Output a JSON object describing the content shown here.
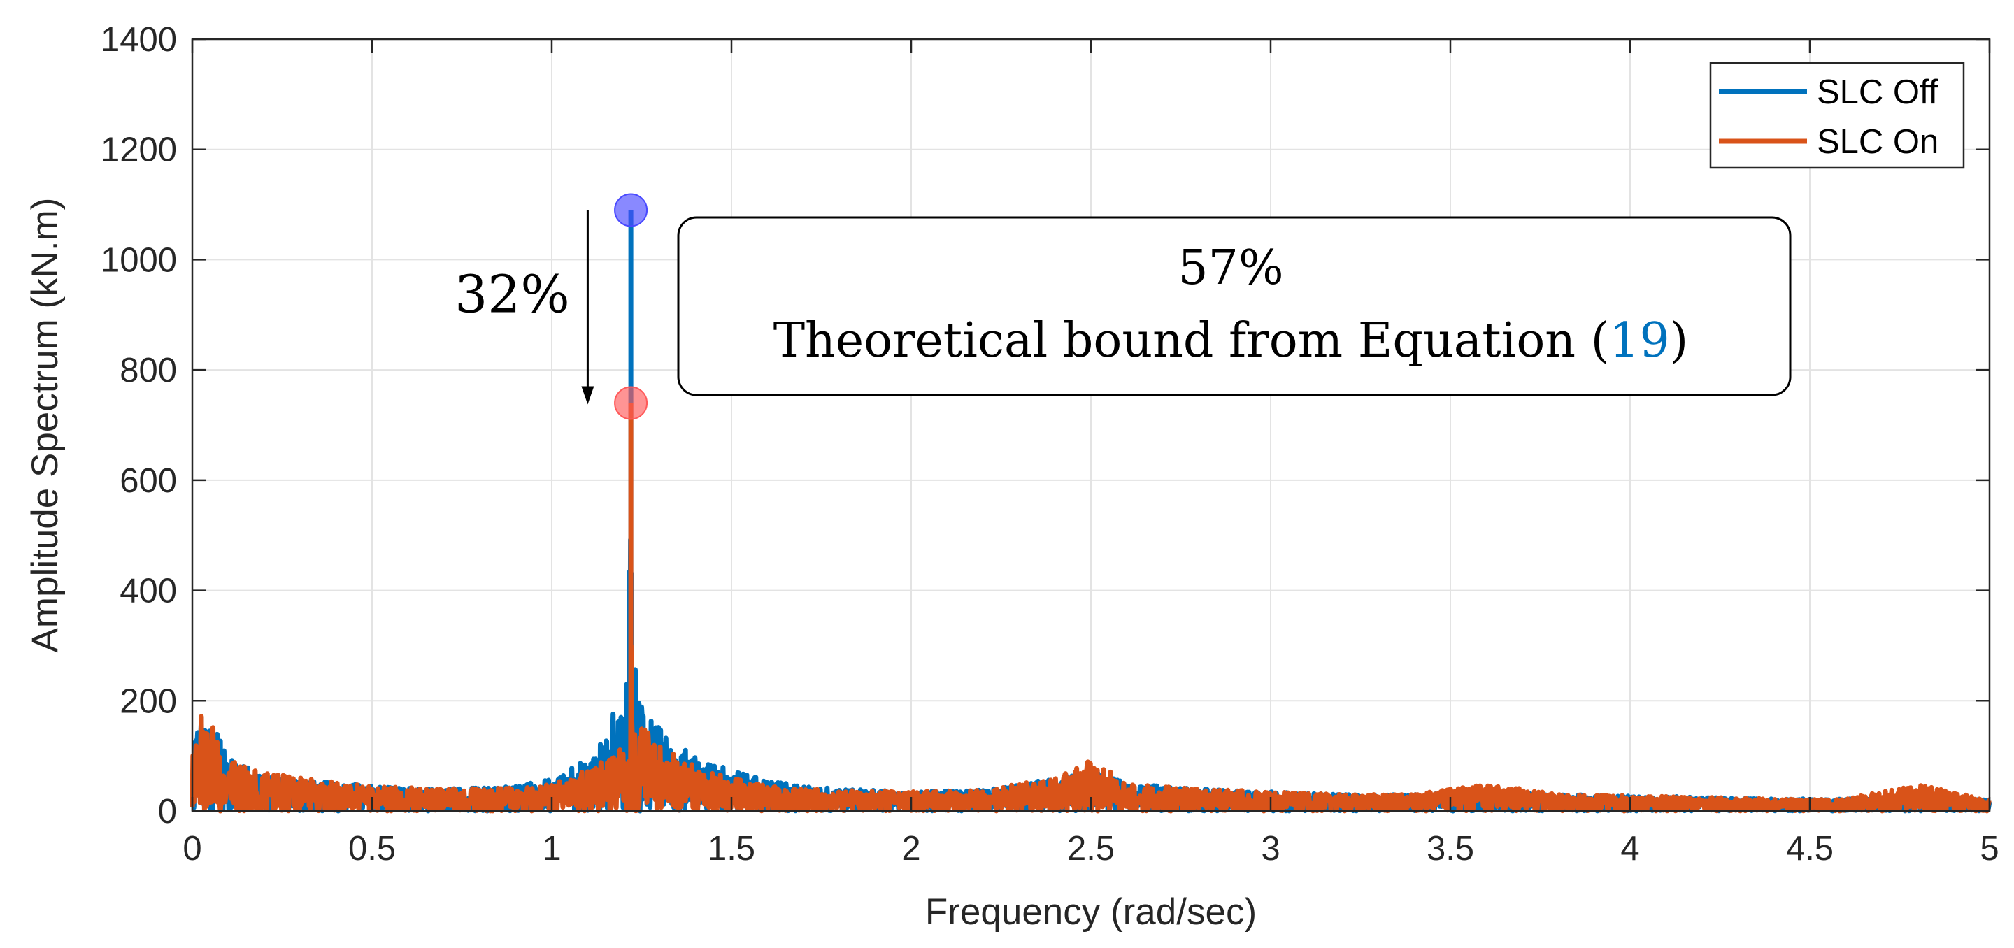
{
  "chart_data": {
    "type": "line",
    "xlabel": "Frequency (rad/sec)",
    "ylabel": "Amplitude Spectrum (kN.m)",
    "xlim": [
      0,
      5
    ],
    "ylim": [
      0,
      1400
    ],
    "x_ticks": [
      0,
      0.5,
      1,
      1.5,
      2,
      2.5,
      3,
      3.5,
      4,
      4.5,
      5
    ],
    "x_tick_labels": [
      "0",
      "0.5",
      "1",
      "1.5",
      "2",
      "2.5",
      "3",
      "3.5",
      "4",
      "4.5",
      "5"
    ],
    "y_ticks": [
      0,
      200,
      400,
      600,
      800,
      1000,
      1200,
      1400
    ],
    "y_tick_labels": [
      "0",
      "200",
      "400",
      "600",
      "800",
      "1000",
      "1200",
      "1400"
    ],
    "grid": true,
    "legend_position": "top-right",
    "series": [
      {
        "name": "SLC Off",
        "color": "#0072BD",
        "x": [
          0,
          0.03,
          0.1,
          0.2,
          0.3,
          0.5,
          0.7,
          0.9,
          1.0,
          1.1,
          1.15,
          1.18,
          1.2,
          1.215,
          1.22,
          1.225,
          1.24,
          1.26,
          1.3,
          1.35,
          1.4,
          1.5,
          1.6,
          1.7,
          1.8,
          2.0,
          2.2,
          2.4,
          2.5,
          2.6,
          2.8,
          3.0,
          3.2,
          3.4,
          3.6,
          3.8,
          4.0,
          4.2,
          4.4,
          4.6,
          4.8,
          5.0
        ],
        "values": [
          110,
          190,
          100,
          70,
          60,
          45,
          40,
          45,
          60,
          95,
          135,
          195,
          175,
          300,
          1090,
          300,
          230,
          180,
          150,
          120,
          100,
          75,
          55,
          45,
          40,
          35,
          38,
          60,
          75,
          50,
          40,
          35,
          30,
          30,
          35,
          30,
          28,
          25,
          22,
          22,
          25,
          20
        ]
      },
      {
        "name": "SLC On",
        "color": "#D95319",
        "x": [
          0,
          0.03,
          0.1,
          0.2,
          0.3,
          0.5,
          0.7,
          0.9,
          1.0,
          1.1,
          1.15,
          1.18,
          1.2,
          1.215,
          1.22,
          1.225,
          1.24,
          1.26,
          1.3,
          1.35,
          1.4,
          1.5,
          1.6,
          1.7,
          1.8,
          2.0,
          2.2,
          2.4,
          2.5,
          2.6,
          2.8,
          3.0,
          3.2,
          3.4,
          3.6,
          3.8,
          4.0,
          4.2,
          4.4,
          4.6,
          4.8,
          5.0
        ],
        "values": [
          110,
          190,
          100,
          70,
          60,
          45,
          40,
          42,
          48,
          75,
          95,
          110,
          120,
          200,
          740,
          200,
          160,
          150,
          120,
          100,
          80,
          60,
          45,
          40,
          38,
          35,
          38,
          60,
          95,
          50,
          40,
          35,
          30,
          30,
          50,
          30,
          28,
          25,
          22,
          22,
          48,
          20
        ]
      }
    ],
    "peak_markers": [
      {
        "series": "SLC Off",
        "x": 1.22,
        "y": 1090,
        "color": "#4A4AFF"
      },
      {
        "series": "SLC On",
        "x": 1.22,
        "y": 740,
        "color": "#FF5A5A"
      }
    ],
    "annotations": {
      "reduction_label": "32%",
      "arrow": {
        "x": 1.1,
        "from_y": 1090,
        "to_y": 740
      },
      "box_line1": "57%",
      "box_line2_prefix": "Theoretical bound from Equation (",
      "box_ref": "19",
      "box_line2_suffix": ")",
      "ref_color": "#0072BD"
    }
  }
}
